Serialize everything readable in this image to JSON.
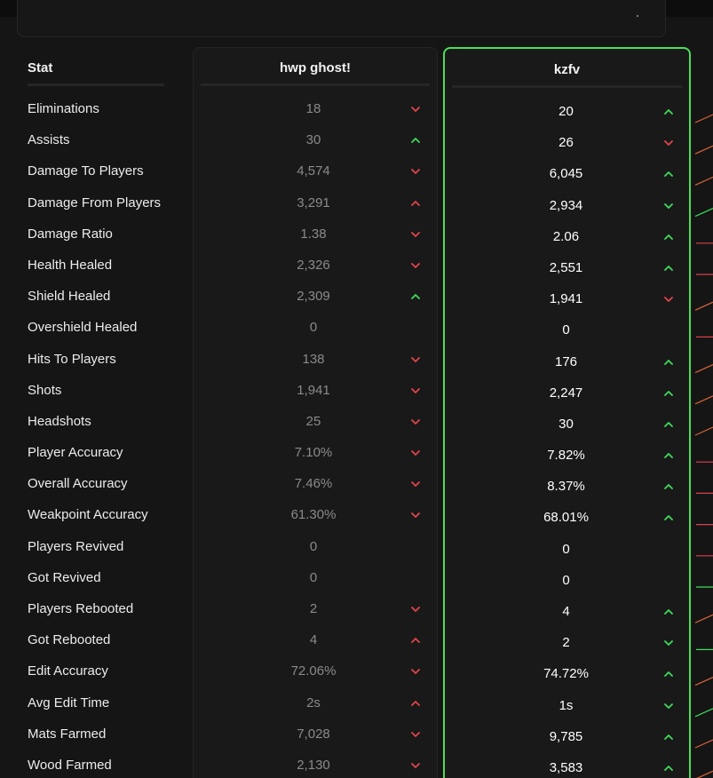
{
  "header": {
    "stat_label": "Stat",
    "player1": "hwp ghost!",
    "player2": "kzfv"
  },
  "colors": {
    "up": "#3ddc5a",
    "down": "#e0454b",
    "highlight_border": "#4ade5a"
  },
  "rows": [
    {
      "stat": "Eliminations",
      "p1": "18",
      "p1_trend": "down",
      "p2": "20",
      "p2_trend": "up"
    },
    {
      "stat": "Assists",
      "p1": "30",
      "p1_trend": "up",
      "p2": "26",
      "p2_trend": "down"
    },
    {
      "stat": "Damage To Players",
      "p1": "4,574",
      "p1_trend": "down",
      "p2": "6,045",
      "p2_trend": "up"
    },
    {
      "stat": "Damage From Players",
      "p1": "3,291",
      "p1_trend": "up-red",
      "p2": "2,934",
      "p2_trend": "down-green"
    },
    {
      "stat": "Damage Ratio",
      "p1": "1.38",
      "p1_trend": "down",
      "p2": "2.06",
      "p2_trend": "up"
    },
    {
      "stat": "Health Healed",
      "p1": "2,326",
      "p1_trend": "down",
      "p2": "2,551",
      "p2_trend": "up"
    },
    {
      "stat": "Shield Healed",
      "p1": "2,309",
      "p1_trend": "up",
      "p2": "1,941",
      "p2_trend": "down"
    },
    {
      "stat": "Overshield Healed",
      "p1": "0",
      "p1_trend": "none",
      "p2": "0",
      "p2_trend": "none"
    },
    {
      "stat": "Hits To Players",
      "p1": "138",
      "p1_trend": "down",
      "p2": "176",
      "p2_trend": "up"
    },
    {
      "stat": "Shots",
      "p1": "1,941",
      "p1_trend": "down",
      "p2": "2,247",
      "p2_trend": "up"
    },
    {
      "stat": "Headshots",
      "p1": "25",
      "p1_trend": "down",
      "p2": "30",
      "p2_trend": "up"
    },
    {
      "stat": "Player Accuracy",
      "p1": "7.10%",
      "p1_trend": "down",
      "p2": "7.82%",
      "p2_trend": "up"
    },
    {
      "stat": "Overall Accuracy",
      "p1": "7.46%",
      "p1_trend": "down",
      "p2": "8.37%",
      "p2_trend": "up"
    },
    {
      "stat": "Weakpoint Accuracy",
      "p1": "61.30%",
      "p1_trend": "down",
      "p2": "68.01%",
      "p2_trend": "up"
    },
    {
      "stat": "Players Revived",
      "p1": "0",
      "p1_trend": "none",
      "p2": "0",
      "p2_trend": "none"
    },
    {
      "stat": "Got Revived",
      "p1": "0",
      "p1_trend": "none",
      "p2": "0",
      "p2_trend": "none"
    },
    {
      "stat": "Players Rebooted",
      "p1": "2",
      "p1_trend": "down",
      "p2": "4",
      "p2_trend": "up"
    },
    {
      "stat": "Got Rebooted",
      "p1": "4",
      "p1_trend": "up-red",
      "p2": "2",
      "p2_trend": "down-green"
    },
    {
      "stat": "Edit Accuracy",
      "p1": "72.06%",
      "p1_trend": "down",
      "p2": "74.72%",
      "p2_trend": "up"
    },
    {
      "stat": "Avg Edit Time",
      "p1": "2s",
      "p1_trend": "up-red",
      "p2": "1s",
      "p2_trend": "down-green"
    },
    {
      "stat": "Mats Farmed",
      "p1": "7,028",
      "p1_trend": "down",
      "p2": "9,785",
      "p2_trend": "up"
    },
    {
      "stat": "Wood Farmed",
      "p1": "2,130",
      "p1_trend": "down",
      "p2": "3,583",
      "p2_trend": "up"
    }
  ],
  "sparklines": [
    "orange-up",
    "orange-up",
    "orange-up",
    "green-up",
    "red-flat",
    "red-flat",
    "orange-up",
    "red-flat",
    "orange-up",
    "orange-up",
    "orange-up",
    "red-flat",
    "red-flat",
    "red-flat",
    "red-flat",
    "green-flat",
    "orange-up",
    "green-flat",
    "orange-up",
    "green-up",
    "orange-up",
    "orange-up"
  ]
}
